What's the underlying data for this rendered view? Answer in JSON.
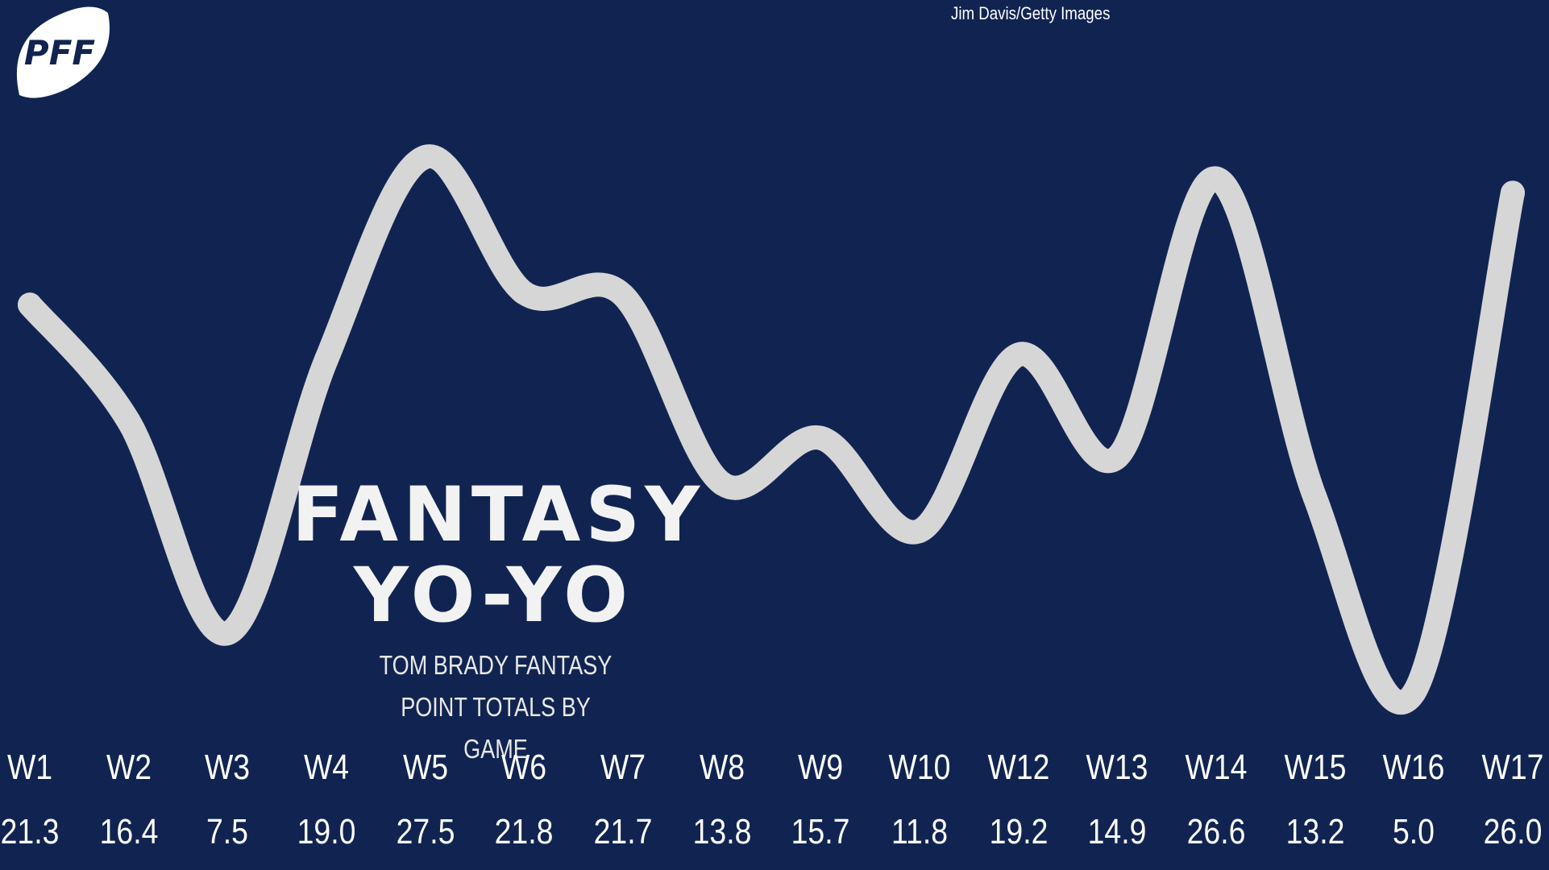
{
  "logo": {
    "text": "PFF",
    "icon": "pff-football-logo-icon"
  },
  "photo_credit": "Jim Davis/Getty Images",
  "title": {
    "line1": "FANTASY",
    "line2": "YO-YO"
  },
  "subtitle": {
    "line1": "TOM BRADY FANTASY",
    "line2": "POINT TOTALS BY GAME"
  },
  "colors": {
    "background": "#112451",
    "line": "#d6d6d6",
    "text": "#ffffff"
  },
  "chart_data": {
    "type": "line",
    "title": "FANTASY YO-YO",
    "subtitle": "TOM BRADY FANTASY POINT TOTALS BY GAME",
    "categories": [
      "W1",
      "W2",
      "W3",
      "W4",
      "W5",
      "W6",
      "W7",
      "W8",
      "W9",
      "W10",
      "W12",
      "W13",
      "W14",
      "W15",
      "W16",
      "W17"
    ],
    "values": [
      21.3,
      16.4,
      7.5,
      19.0,
      27.5,
      21.8,
      21.7,
      13.8,
      15.7,
      11.8,
      19.2,
      14.9,
      26.6,
      13.2,
      5.0,
      26.0
    ],
    "series": [
      {
        "values": [
          21.3,
          16.4,
          7.5,
          19.0,
          27.5,
          21.8,
          21.7,
          13.8,
          15.7,
          11.8,
          19.2,
          14.9,
          26.6,
          13.2,
          5.0,
          26.0
        ]
      }
    ],
    "xlabel": "",
    "ylabel": "",
    "grid": false,
    "legend": "none"
  }
}
